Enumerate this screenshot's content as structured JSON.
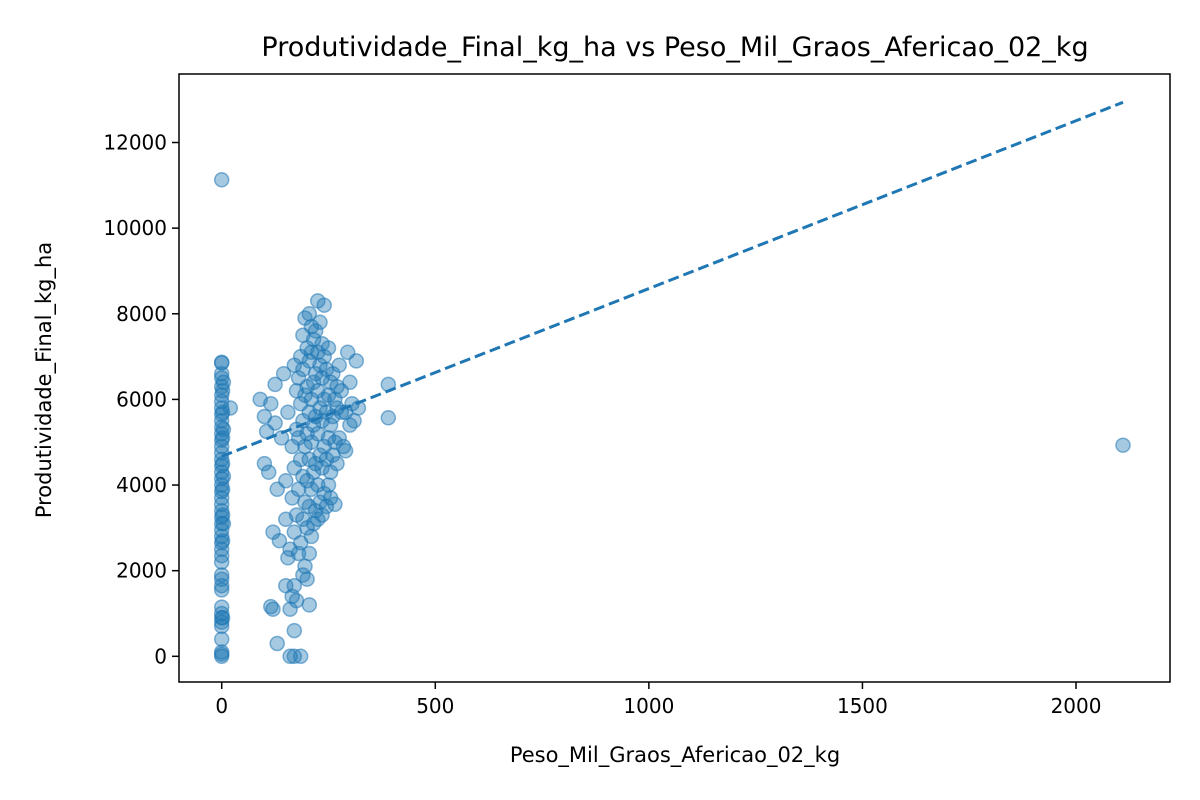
{
  "chart_data": {
    "type": "scatter",
    "title": "Produtividade_Final_kg_ha vs Peso_Mil_Graos_Afericao_02_kg",
    "xlabel": "Peso_Mil_Graos_Afericao_02_kg",
    "ylabel": "Produtividade_Final_kg_ha",
    "xlim": [
      -100,
      2220
    ],
    "ylim": [
      -600,
      13600
    ],
    "x_ticks": [
      0,
      500,
      1000,
      1500,
      2000
    ],
    "y_ticks": [
      0,
      2000,
      4000,
      6000,
      8000,
      10000,
      12000
    ],
    "x_tick_labels": [
      "0",
      "500",
      "1000",
      "1500",
      "2000"
    ],
    "y_tick_labels": [
      "0",
      "2000",
      "4000",
      "6000",
      "8000",
      "10000",
      "12000"
    ],
    "grid": false,
    "legend": "none",
    "point_color": "#1f77b4",
    "point_alpha": 0.4,
    "series": [
      {
        "style": "markers",
        "points": [
          [
            0,
            11130
          ],
          [
            0,
            6870
          ],
          [
            0,
            6850
          ],
          [
            0,
            6600
          ],
          [
            0,
            6500
          ],
          [
            0,
            6300
          ],
          [
            0,
            6100
          ],
          [
            0,
            5950
          ],
          [
            0,
            5800
          ],
          [
            0,
            5650
          ],
          [
            0,
            5500
          ],
          [
            0,
            5350
          ],
          [
            0,
            5200
          ],
          [
            0,
            5050
          ],
          [
            0,
            4900
          ],
          [
            0,
            4750
          ],
          [
            0,
            4600
          ],
          [
            0,
            4450
          ],
          [
            0,
            4300
          ],
          [
            0,
            4150
          ],
          [
            0,
            4000
          ],
          [
            0,
            3850
          ],
          [
            0,
            3700
          ],
          [
            0,
            3550
          ],
          [
            0,
            3400
          ],
          [
            0,
            3250
          ],
          [
            0,
            3100
          ],
          [
            0,
            2950
          ],
          [
            0,
            2800
          ],
          [
            0,
            2650
          ],
          [
            0,
            2500
          ],
          [
            0,
            2350
          ],
          [
            0,
            2200
          ],
          [
            0,
            1900
          ],
          [
            0,
            1800
          ],
          [
            0,
            1650
          ],
          [
            0,
            1550
          ],
          [
            0,
            1150
          ],
          [
            0,
            1000
          ],
          [
            0,
            900
          ],
          [
            0,
            800
          ],
          [
            0,
            700
          ],
          [
            0,
            400
          ],
          [
            0,
            100
          ],
          [
            0,
            50
          ],
          [
            0,
            0
          ],
          [
            2,
            6200
          ],
          [
            2,
            5700
          ],
          [
            2,
            5100
          ],
          [
            2,
            4500
          ],
          [
            2,
            3900
          ],
          [
            2,
            3300
          ],
          [
            2,
            2700
          ],
          [
            2,
            900
          ],
          [
            4,
            6400
          ],
          [
            4,
            5300
          ],
          [
            4,
            4200
          ],
          [
            4,
            3100
          ],
          [
            20,
            5800
          ],
          [
            90,
            6000
          ],
          [
            100,
            5600
          ],
          [
            100,
            4500
          ],
          [
            105,
            5250
          ],
          [
            110,
            4300
          ],
          [
            115,
            5900
          ],
          [
            120,
            1100
          ],
          [
            115,
            1160
          ],
          [
            120,
            2900
          ],
          [
            125,
            5450
          ],
          [
            125,
            6350
          ],
          [
            130,
            300
          ],
          [
            130,
            3900
          ],
          [
            135,
            2700
          ],
          [
            140,
            5100
          ],
          [
            145,
            6600
          ],
          [
            150,
            1650
          ],
          [
            150,
            3200
          ],
          [
            150,
            4100
          ],
          [
            155,
            2300
          ],
          [
            155,
            5700
          ],
          [
            160,
            1100
          ],
          [
            160,
            0
          ],
          [
            160,
            2500
          ],
          [
            165,
            1400
          ],
          [
            165,
            3700
          ],
          [
            165,
            4900
          ],
          [
            170,
            600
          ],
          [
            170,
            0
          ],
          [
            170,
            1650
          ],
          [
            170,
            2900
          ],
          [
            170,
            4400
          ],
          [
            170,
            6800
          ],
          [
            175,
            1300
          ],
          [
            175,
            3300
          ],
          [
            175,
            5300
          ],
          [
            175,
            6200
          ],
          [
            180,
            2400
          ],
          [
            180,
            3900
          ],
          [
            180,
            5100
          ],
          [
            180,
            6500
          ],
          [
            185,
            0
          ],
          [
            185,
            2650
          ],
          [
            185,
            4600
          ],
          [
            185,
            5900
          ],
          [
            185,
            7000
          ],
          [
            190,
            1900
          ],
          [
            190,
            3200
          ],
          [
            190,
            4200
          ],
          [
            190,
            5500
          ],
          [
            190,
            6700
          ],
          [
            190,
            7500
          ],
          [
            195,
            2100
          ],
          [
            195,
            3600
          ],
          [
            195,
            4900
          ],
          [
            195,
            6100
          ],
          [
            195,
            7900
          ],
          [
            200,
            1800
          ],
          [
            200,
            3000
          ],
          [
            200,
            4100
          ],
          [
            200,
            5200
          ],
          [
            200,
            6300
          ],
          [
            200,
            7200
          ],
          [
            205,
            1200
          ],
          [
            205,
            2400
          ],
          [
            205,
            3500
          ],
          [
            205,
            4600
          ],
          [
            205,
            5700
          ],
          [
            205,
            6900
          ],
          [
            205,
            8000
          ],
          [
            210,
            2800
          ],
          [
            210,
            3900
          ],
          [
            210,
            5000
          ],
          [
            210,
            6000
          ],
          [
            210,
            7100
          ],
          [
            210,
            7700
          ],
          [
            215,
            3100
          ],
          [
            215,
            4300
          ],
          [
            215,
            5400
          ],
          [
            215,
            6400
          ],
          [
            215,
            7400
          ],
          [
            220,
            3400
          ],
          [
            220,
            4500
          ],
          [
            220,
            5600
          ],
          [
            220,
            6600
          ],
          [
            220,
            7600
          ],
          [
            225,
            3200
          ],
          [
            225,
            4000
          ],
          [
            225,
            5200
          ],
          [
            225,
            6200
          ],
          [
            225,
            7100
          ],
          [
            225,
            8300
          ],
          [
            230,
            3600
          ],
          [
            230,
            4700
          ],
          [
            230,
            5800
          ],
          [
            230,
            6800
          ],
          [
            230,
            7800
          ],
          [
            235,
            3300
          ],
          [
            235,
            4400
          ],
          [
            235,
            5500
          ],
          [
            235,
            6500
          ],
          [
            235,
            7300
          ],
          [
            240,
            3800
          ],
          [
            240,
            4900
          ],
          [
            240,
            6000
          ],
          [
            240,
            7000
          ],
          [
            240,
            8200
          ],
          [
            245,
            3500
          ],
          [
            245,
            4600
          ],
          [
            245,
            5700
          ],
          [
            245,
            6700
          ],
          [
            250,
            4000
          ],
          [
            250,
            5100
          ],
          [
            250,
            6100
          ],
          [
            250,
            7200
          ],
          [
            255,
            4300
          ],
          [
            255,
            5400
          ],
          [
            255,
            6400
          ],
          [
            255,
            3700
          ],
          [
            260,
            4700
          ],
          [
            260,
            5600
          ],
          [
            260,
            6600
          ],
          [
            265,
            3550
          ],
          [
            265,
            5000
          ],
          [
            265,
            6000
          ],
          [
            270,
            4500
          ],
          [
            270,
            5800
          ],
          [
            270,
            6300
          ],
          [
            275,
            5100
          ],
          [
            275,
            6800
          ],
          [
            280,
            5700
          ],
          [
            280,
            6200
          ],
          [
            285,
            4900
          ],
          [
            290,
            4800
          ],
          [
            290,
            5700
          ],
          [
            295,
            7100
          ],
          [
            300,
            6400
          ],
          [
            300,
            5400
          ],
          [
            305,
            5900
          ],
          [
            310,
            5500
          ],
          [
            315,
            6900
          ],
          [
            320,
            5800
          ],
          [
            390,
            6350
          ],
          [
            390,
            5570
          ],
          [
            2110,
            4930
          ]
        ]
      },
      {
        "style": "dashed-line",
        "points": [
          [
            0,
            4670
          ],
          [
            2110,
            12940
          ]
        ]
      }
    ]
  }
}
